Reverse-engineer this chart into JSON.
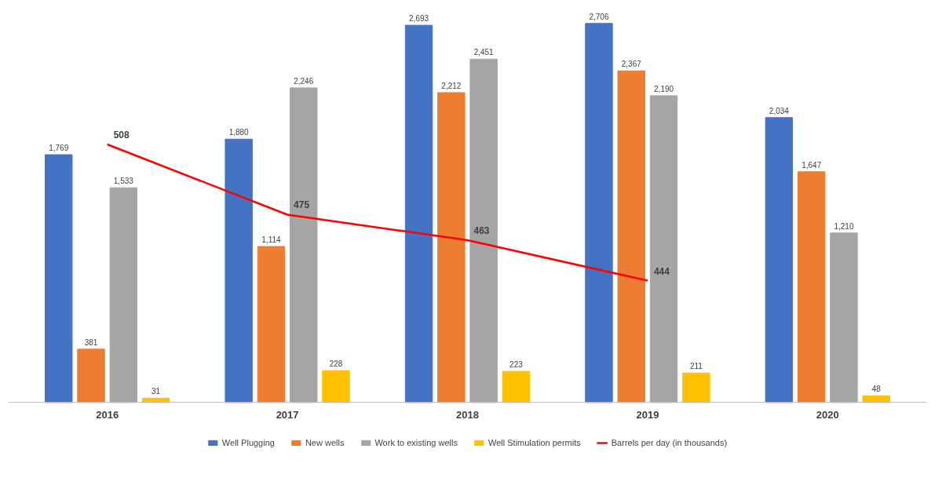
{
  "chart_data": {
    "type": "bar",
    "categories": [
      "2016",
      "2017",
      "2018",
      "2019",
      "2020"
    ],
    "series": [
      {
        "name": "Well Plugging",
        "color": "#4472c4",
        "values": [
          1769,
          1880,
          2693,
          2706,
          2034
        ],
        "value_labels": [
          "1,769",
          "1,880",
          "2,693",
          "2,706",
          "2,034"
        ]
      },
      {
        "name": "New wells",
        "color": "#ed7d31",
        "values": [
          381,
          1114,
          2212,
          2367,
          1647
        ],
        "value_labels": [
          "381",
          "1,114",
          "2,212",
          "2,367",
          "1,647"
        ]
      },
      {
        "name": "Work to existing wells",
        "color": "#a5a5a5",
        "values": [
          1533,
          2246,
          2451,
          2190,
          1210
        ],
        "value_labels": [
          "1,533",
          "2,246",
          "2,451",
          "2,190",
          "1,210"
        ]
      },
      {
        "name": "Well Stimulation permits",
        "color": "#ffc000",
        "values": [
          31,
          228,
          223,
          211,
          48
        ],
        "value_labels": [
          "31",
          "228",
          "223",
          "211",
          "48"
        ]
      },
      {
        "name": "Barrels per day (in thousands)",
        "type": "line",
        "axis": "y2",
        "color": "#ff0000",
        "values": [
          508,
          475,
          463,
          444,
          null
        ],
        "value_labels": [
          "508",
          "475",
          "463",
          "444",
          null
        ]
      }
    ],
    "tick_labels": "x",
    "grid": false,
    "legend": "bottom"
  }
}
